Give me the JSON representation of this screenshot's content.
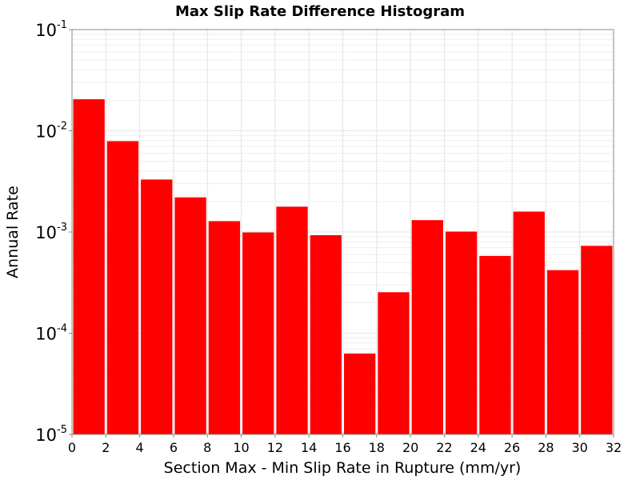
{
  "chart_data": {
    "type": "bar",
    "title": "Max Slip Rate Difference Histogram",
    "xlabel": "Section Max - Min Slip Rate in Rupture (mm/yr)",
    "ylabel": "Annual Rate",
    "yscale": "log",
    "xlim": [
      0,
      32
    ],
    "ylim": [
      1e-05,
      0.1
    ],
    "bin_width": 2,
    "x_ticks": [
      0,
      2,
      4,
      6,
      8,
      10,
      12,
      14,
      16,
      18,
      20,
      22,
      24,
      26,
      28,
      30,
      32
    ],
    "y_ticks": [
      {
        "value": 0.1,
        "base": "10",
        "exp": "-1"
      },
      {
        "value": 0.01,
        "base": "10",
        "exp": "-2"
      },
      {
        "value": 0.001,
        "base": "10",
        "exp": "-3"
      },
      {
        "value": 0.0001,
        "base": "10",
        "exp": "-4"
      },
      {
        "value": 1e-05,
        "base": "10",
        "exp": "-5"
      }
    ],
    "grid": true,
    "bar_color": "#ff0000",
    "bins": [
      {
        "x0": 0,
        "x1": 2,
        "value": 0.0205
      },
      {
        "x0": 2,
        "x1": 4,
        "value": 0.0079
      },
      {
        "x0": 4,
        "x1": 6,
        "value": 0.0033
      },
      {
        "x0": 6,
        "x1": 8,
        "value": 0.0022
      },
      {
        "x0": 8,
        "x1": 10,
        "value": 0.00128
      },
      {
        "x0": 10,
        "x1": 12,
        "value": 0.00099
      },
      {
        "x0": 12,
        "x1": 14,
        "value": 0.00178
      },
      {
        "x0": 14,
        "x1": 16,
        "value": 0.00093
      },
      {
        "x0": 16,
        "x1": 18,
        "value": 6.3e-05
      },
      {
        "x0": 18,
        "x1": 20,
        "value": 0.000254
      },
      {
        "x0": 20,
        "x1": 22,
        "value": 0.00131
      },
      {
        "x0": 22,
        "x1": 24,
        "value": 0.00101
      },
      {
        "x0": 24,
        "x1": 26,
        "value": 0.00058
      },
      {
        "x0": 26,
        "x1": 28,
        "value": 0.00159
      },
      {
        "x0": 28,
        "x1": 30,
        "value": 0.00042
      },
      {
        "x0": 30,
        "x1": 32,
        "value": 0.00073
      }
    ]
  }
}
